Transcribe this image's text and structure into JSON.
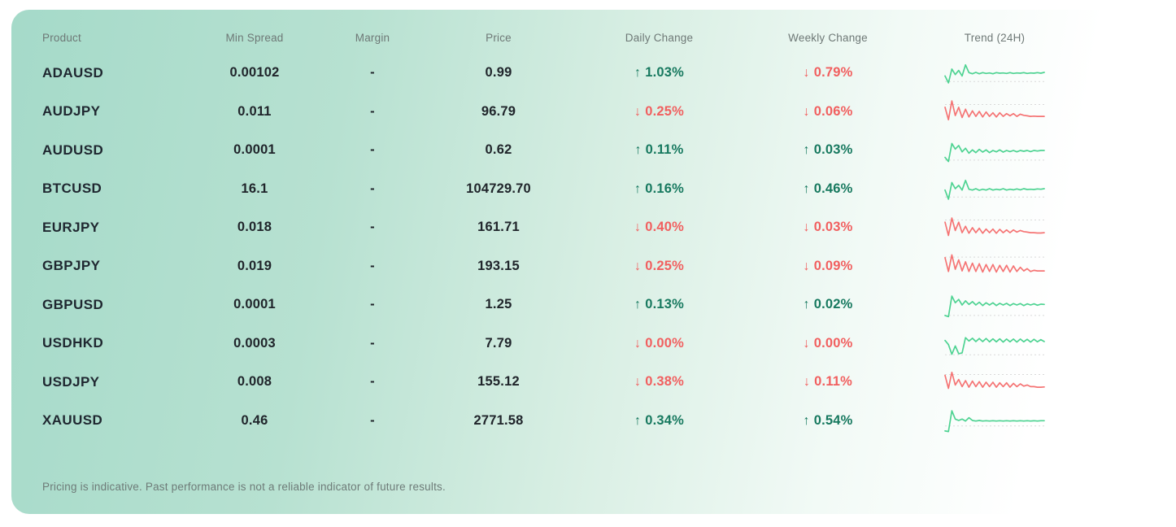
{
  "colors": {
    "up_text": "#17795f",
    "down_text": "#f15f5f",
    "spark_up": "#4ed392",
    "spark_down": "#f57474",
    "baseline": "#d9d9d9",
    "card_tint": "#a5dac9"
  },
  "card": {
    "columns": [
      "Product",
      "Min Spread",
      "Margin",
      "Price",
      "Daily Change",
      "Weekly Change",
      "Trend (24H)"
    ],
    "arrow_up": "↑",
    "arrow_down": "↓",
    "disclaimer": "Pricing is indicative. Past performance is not a reliable indicator of future results.",
    "rows": [
      {
        "product": "ADAUSD",
        "min_spread": "0.00102",
        "margin": "-",
        "price": "0.99",
        "daily": {
          "dir": "up",
          "arrow": "↑",
          "value": "1.03%"
        },
        "weekly": {
          "dir": "down",
          "arrow": "↓",
          "value": "0.79%"
        },
        "trend": {
          "dir": "up",
          "baseline": 80,
          "points": [
            60,
            85,
            35,
            55,
            40,
            60,
            20,
            48,
            52,
            47,
            52,
            48,
            51,
            49,
            52,
            48,
            50,
            49,
            51,
            48,
            51,
            49,
            50,
            48,
            51,
            49,
            50,
            48,
            50,
            47
          ]
        }
      },
      {
        "product": "AUDJPY",
        "min_spread": "0.011",
        "margin": "-",
        "price": "96.79",
        "daily": {
          "dir": "down",
          "arrow": "↓",
          "value": "0.25%"
        },
        "weekly": {
          "dir": "down",
          "arrow": "↓",
          "value": "0.06%"
        },
        "trend": {
          "dir": "down",
          "baseline": 25,
          "points": [
            35,
            80,
            12,
            65,
            35,
            72,
            42,
            70,
            48,
            68,
            50,
            70,
            52,
            68,
            55,
            70,
            55,
            68,
            58,
            66,
            58,
            68,
            60,
            64,
            66,
            68,
            67,
            68,
            68,
            68
          ]
        }
      },
      {
        "product": "AUDUSD",
        "min_spread": "0.0001",
        "margin": "-",
        "price": "0.62",
        "daily": {
          "dir": "up",
          "arrow": "↑",
          "value": "0.11%"
        },
        "weekly": {
          "dir": "up",
          "arrow": "↑",
          "value": "0.03%"
        },
        "trend": {
          "dir": "up",
          "baseline": 85,
          "points": [
            75,
            90,
            25,
            45,
            32,
            55,
            42,
            60,
            48,
            58,
            46,
            56,
            48,
            58,
            50,
            55,
            48,
            56,
            50,
            54,
            50,
            55,
            50,
            53,
            50,
            54,
            50,
            52,
            50,
            50
          ]
        }
      },
      {
        "product": "BTCUSD",
        "min_spread": "16.1",
        "margin": "-",
        "price": "104729.70",
        "daily": {
          "dir": "up",
          "arrow": "↑",
          "value": "0.16%"
        },
        "weekly": {
          "dir": "up",
          "arrow": "↑",
          "value": "0.46%"
        },
        "trend": {
          "dir": "up",
          "baseline": 80,
          "points": [
            55,
            88,
            28,
            50,
            38,
            55,
            20,
            52,
            55,
            50,
            56,
            52,
            55,
            50,
            55,
            52,
            54,
            50,
            55,
            52,
            54,
            51,
            54,
            50,
            53,
            52,
            53,
            51,
            52,
            50
          ]
        }
      },
      {
        "product": "EURJPY",
        "min_spread": "0.018",
        "margin": "-",
        "price": "161.71",
        "daily": {
          "dir": "down",
          "arrow": "↓",
          "value": "0.40%"
        },
        "weekly": {
          "dir": "down",
          "arrow": "↓",
          "value": "0.03%"
        },
        "trend": {
          "dir": "down",
          "baseline": 22,
          "points": [
            30,
            78,
            15,
            60,
            30,
            68,
            45,
            70,
            50,
            68,
            52,
            70,
            55,
            68,
            55,
            70,
            56,
            68,
            58,
            68,
            58,
            66,
            60,
            64,
            66,
            68,
            68,
            69,
            69,
            68
          ]
        }
      },
      {
        "product": "GBPJPY",
        "min_spread": "0.019",
        "margin": "-",
        "price": "193.15",
        "daily": {
          "dir": "down",
          "arrow": "↓",
          "value": "0.25%"
        },
        "weekly": {
          "dir": "down",
          "arrow": "↓",
          "value": "0.09%"
        },
        "trend": {
          "dir": "down",
          "baseline": 18,
          "points": [
            20,
            70,
            10,
            62,
            28,
            68,
            35,
            70,
            40,
            70,
            42,
            72,
            45,
            70,
            45,
            72,
            48,
            70,
            48,
            72,
            50,
            70,
            55,
            68,
            60,
            70,
            66,
            68,
            68,
            68
          ]
        }
      },
      {
        "product": "GBPUSD",
        "min_spread": "0.0001",
        "margin": "-",
        "price": "1.25",
        "daily": {
          "dir": "up",
          "arrow": "↑",
          "value": "0.13%"
        },
        "weekly": {
          "dir": "up",
          "arrow": "↑",
          "value": "0.02%"
        },
        "trend": {
          "dir": "up",
          "baseline": 88,
          "points": [
            88,
            92,
            18,
            42,
            30,
            50,
            35,
            48,
            38,
            50,
            40,
            52,
            42,
            50,
            42,
            52,
            44,
            50,
            44,
            52,
            45,
            50,
            45,
            52,
            46,
            50,
            46,
            51,
            47,
            48
          ]
        }
      },
      {
        "product": "USDHKD",
        "min_spread": "0.0003",
        "margin": "-",
        "price": "7.79",
        "daily": {
          "dir": "down",
          "arrow": "↓",
          "value": "0.00%"
        },
        "weekly": {
          "dir": "down",
          "arrow": "↓",
          "value": "0.00%"
        },
        "trend": {
          "dir": "up",
          "baseline": 92,
          "points": [
            40,
            55,
            90,
            60,
            88,
            85,
            30,
            42,
            32,
            44,
            33,
            44,
            33,
            45,
            34,
            45,
            34,
            46,
            35,
            45,
            35,
            46,
            35,
            45,
            36,
            46,
            36,
            45,
            37,
            44
          ]
        }
      },
      {
        "product": "USDJPY",
        "min_spread": "0.008",
        "margin": "-",
        "price": "155.12",
        "daily": {
          "dir": "down",
          "arrow": "↓",
          "value": "0.38%"
        },
        "weekly": {
          "dir": "down",
          "arrow": "↓",
          "value": "0.11%"
        },
        "trend": {
          "dir": "down",
          "baseline": 22,
          "points": [
            25,
            72,
            14,
            60,
            40,
            66,
            44,
            68,
            46,
            66,
            48,
            68,
            50,
            66,
            50,
            68,
            52,
            66,
            52,
            68,
            54,
            66,
            56,
            64,
            60,
            66,
            66,
            68,
            68,
            67
          ]
        }
      },
      {
        "product": "XAUUSD",
        "min_spread": "0.46",
        "margin": "-",
        "price": "2771.58",
        "daily": {
          "dir": "up",
          "arrow": "↑",
          "value": "0.34%"
        },
        "weekly": {
          "dir": "up",
          "arrow": "↑",
          "value": "0.54%"
        },
        "trend": {
          "dir": "up",
          "baseline": 70,
          "points": [
            88,
            90,
            15,
            45,
            50,
            45,
            52,
            40,
            50,
            52,
            50,
            52,
            51,
            52,
            51,
            52,
            51,
            52,
            51,
            52,
            51,
            52,
            51,
            52,
            51,
            52,
            51,
            52,
            51,
            51
          ]
        }
      }
    ]
  }
}
